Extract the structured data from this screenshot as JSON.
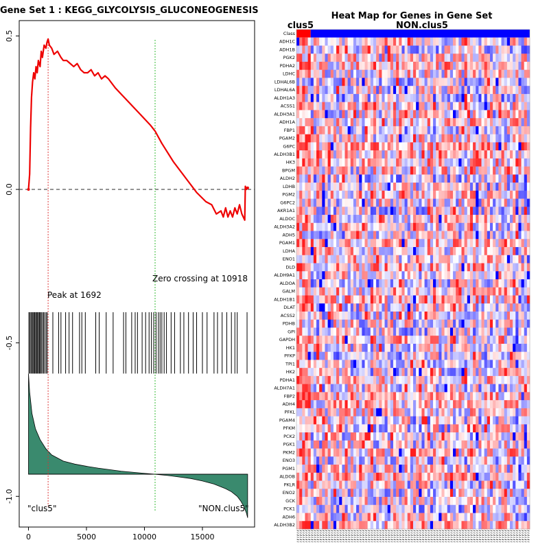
{
  "chart_data": [
    {
      "type": "line",
      "title": "Gene Set  1 : KEGG_GLYCOLYSIS_GLUCONEOGENESIS",
      "xlabel": "",
      "ylabel": "",
      "xlim": [
        -800,
        19500
      ],
      "ylim": [
        -1.1,
        0.55
      ],
      "x_ticks": [
        0,
        5000,
        10000,
        15000
      ],
      "x_tick_labels": [
        "0",
        "5000",
        "10000",
        "15000"
      ],
      "y_ticks": [
        0.5,
        0.0,
        -0.5,
        -1.0
      ],
      "y_tick_labels": [
        "0.5",
        "0.0",
        "-0.5",
        "-1.0"
      ],
      "series": [
        {
          "color": "#ee0000",
          "x": [
            0,
            100,
            180,
            260,
            350,
            450,
            550,
            650,
            750,
            850,
            1000,
            1100,
            1200,
            1350,
            1500,
            1600,
            1692,
            1800,
            2000,
            2200,
            2500,
            2800,
            3000,
            3300,
            3600,
            3900,
            4200,
            4500,
            4800,
            5100,
            5400,
            5700,
            6000,
            6300,
            6600,
            6900,
            7500,
            8500,
            9500,
            10500,
            10918,
            11500,
            12500,
            13500,
            14500,
            15300,
            15800,
            16200,
            16600,
            16800,
            17000,
            17200,
            17400,
            17600,
            17800,
            18000,
            18200,
            18400,
            18650,
            18700,
            18800,
            18900
          ],
          "y": [
            0.0,
            0.05,
            0.2,
            0.3,
            0.35,
            0.38,
            0.36,
            0.4,
            0.38,
            0.42,
            0.4,
            0.45,
            0.43,
            0.47,
            0.46,
            0.48,
            0.49,
            0.47,
            0.46,
            0.44,
            0.45,
            0.43,
            0.42,
            0.42,
            0.41,
            0.4,
            0.41,
            0.39,
            0.38,
            0.38,
            0.39,
            0.37,
            0.38,
            0.36,
            0.37,
            0.36,
            0.33,
            0.29,
            0.25,
            0.21,
            0.19,
            0.15,
            0.09,
            0.04,
            -0.01,
            -0.04,
            -0.05,
            -0.08,
            -0.07,
            -0.09,
            -0.06,
            -0.09,
            -0.07,
            -0.09,
            -0.06,
            -0.08,
            -0.05,
            -0.08,
            -0.1,
            0.01,
            0.0,
            0.005
          ]
        }
      ],
      "reference_line": {
        "y": 0.0,
        "style": "dashed",
        "color": "#555555"
      },
      "peak": {
        "x": 1692,
        "label": "Peak at 1692",
        "color": "#dd3333"
      },
      "zero_crossing": {
        "x": 10918,
        "label": "Zero crossing at 10918",
        "color": "#33bb33"
      },
      "hit_positions": [
        30,
        120,
        210,
        300,
        380,
        460,
        540,
        620,
        700,
        780,
        860,
        940,
        1020,
        1100,
        1200,
        1300,
        1400,
        1520,
        1620,
        2100,
        2600,
        2800,
        3200,
        3500,
        3800,
        4400,
        4600,
        4900,
        5800,
        6100,
        6700,
        7300,
        8200,
        8400,
        8900,
        9200,
        9400,
        9800,
        10100,
        10400,
        10600,
        10800,
        11000,
        11200,
        11350,
        11500,
        11700,
        11900,
        12300,
        12600,
        13100,
        13400,
        13800,
        14200,
        14500,
        15000,
        15400,
        16000,
        16300,
        16700,
        17100,
        17500,
        17800,
        18000,
        18850
      ],
      "hit_band": {
        "top": -0.4,
        "bottom": -0.6
      },
      "ranked_metric": {
        "x": [
          0,
          100,
          300,
          600,
          1000,
          1500,
          2000,
          3000,
          4000,
          5000,
          6000,
          8000,
          10000,
          10918,
          12000,
          14000,
          15000,
          16000,
          17000,
          17500,
          18000,
          18300,
          18600,
          18800,
          18900
        ],
        "y": [
          -0.6,
          -0.66,
          -0.73,
          -0.78,
          -0.815,
          -0.845,
          -0.865,
          -0.885,
          -0.895,
          -0.902,
          -0.908,
          -0.918,
          -0.925,
          -0.928,
          -0.932,
          -0.942,
          -0.95,
          -0.96,
          -0.975,
          -0.985,
          -1.0,
          -1.015,
          -1.035,
          -1.055,
          -1.07
        ],
        "baseline": -0.928,
        "fill_color": "#3a8a6e"
      },
      "annotations": [
        "\"clus5\"",
        "\"NON.clus5\""
      ]
    },
    {
      "type": "heatmap",
      "title": "Heat Map for Genes in Gene Set",
      "col_group_labels": [
        "clus5",
        "NON.clus5"
      ],
      "class_row_label": "Class",
      "class_colors": [
        "#ff0000",
        "#0000ff"
      ],
      "genes": [
        "ADH1C",
        "ADH1B",
        "PGK2",
        "PDHA2",
        "LDHC",
        "LDHAL6B",
        "LDHAL6A",
        "ALDH1A3",
        "ACSS1",
        "ALDH3A1",
        "ADH1A",
        "FBP1",
        "PGAM2",
        "G6PC",
        "ALDH3B1",
        "HK3",
        "BPGM",
        "ALDH2",
        "LDHB",
        "PGM2",
        "G6PC2",
        "AKR1A1",
        "ALDOC",
        "ALDH3A2",
        "ADH5",
        "PGAM1",
        "LDHA",
        "ENO1",
        "DLD",
        "ALDH9A1",
        "ALDOA",
        "GALM",
        "ALDH1B1",
        "DLAT",
        "ACSS2",
        "PDHB",
        "GPI",
        "GAPDH",
        "HK1",
        "PFKP",
        "TPI1",
        "HK2",
        "PDHA1",
        "ALDH7A1",
        "FBP2",
        "ADH4",
        "PFKL",
        "PGAM4",
        "PFKM",
        "PCK2",
        "PGK1",
        "PKM2",
        "ENO3",
        "PGM1",
        "ALDOB",
        "PKLR",
        "ENO2",
        "GCK",
        "PCK1",
        "ADH6",
        "ALDH3B2"
      ],
      "n_columns": 82,
      "n_group1_columns": 5,
      "color_scale": {
        "low": "#0000ff",
        "mid": "#ffffff",
        "high": "#ff0000"
      },
      "values_note": ""
    }
  ]
}
